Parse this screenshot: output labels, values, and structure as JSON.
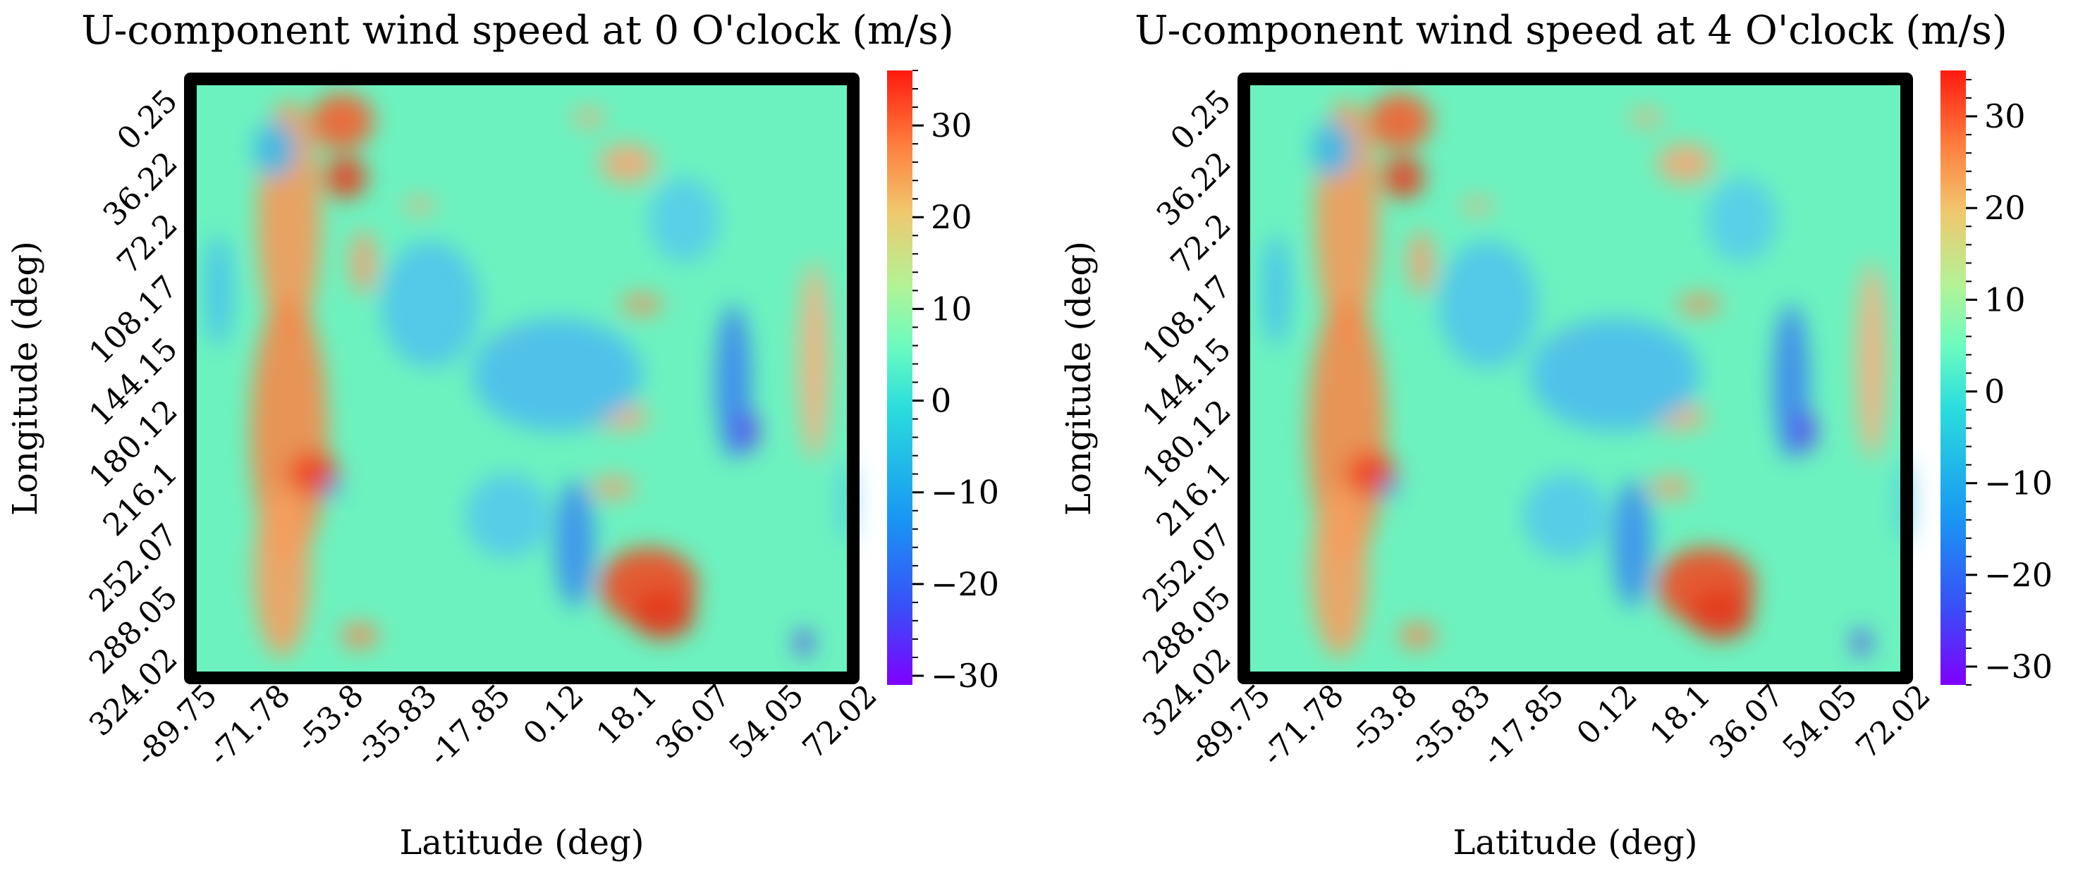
{
  "chart_data": [
    {
      "type": "heatmap",
      "title": "U-component wind speed at 0 O'clock (m/s)",
      "xlabel": "Latitude (deg)",
      "ylabel": "Longitude (deg)",
      "x_ticks": [
        "-89.75",
        "-71.78",
        "-53.8",
        "-35.83",
        "-17.85",
        "0.12",
        "18.1",
        "36.07",
        "54.05",
        "72.02"
      ],
      "y_ticks": [
        "0.25",
        "36.22",
        "72.2",
        "108.17",
        "144.15",
        "180.12",
        "216.1",
        "252.07",
        "288.05",
        "324.02"
      ],
      "colorbar": {
        "range": [
          -31,
          36
        ],
        "ticks": [
          {
            "value": 30,
            "label": "30"
          },
          {
            "value": 20,
            "label": "20"
          },
          {
            "value": 10,
            "label": "10"
          },
          {
            "value": 0,
            "label": "0"
          },
          {
            "value": -10,
            "label": "−10"
          },
          {
            "value": -20,
            "label": "−20"
          },
          {
            "value": -30,
            "label": "−30"
          }
        ],
        "colormap": "rainbow"
      }
    },
    {
      "type": "heatmap",
      "title": "U-component wind speed at 4 O'clock (m/s)",
      "xlabel": "Latitude (deg)",
      "ylabel": "Longitude (deg)",
      "x_ticks": [
        "-89.75",
        "-71.78",
        "-53.8",
        "-35.83",
        "-17.85",
        "0.12",
        "18.1",
        "36.07",
        "54.05",
        "72.02"
      ],
      "y_ticks": [
        "0.25",
        "36.22",
        "72.2",
        "108.17",
        "144.15",
        "180.12",
        "216.1",
        "252.07",
        "288.05",
        "324.02"
      ],
      "colorbar": {
        "range": [
          -32,
          35
        ],
        "ticks": [
          {
            "value": 30,
            "label": "30"
          },
          {
            "value": 20,
            "label": "20"
          },
          {
            "value": 10,
            "label": "10"
          },
          {
            "value": 0,
            "label": "0"
          },
          {
            "value": -10,
            "label": "−10"
          },
          {
            "value": -20,
            "label": "−20"
          },
          {
            "value": -30,
            "label": "−30"
          }
        ],
        "colormap": "rainbow"
      }
    }
  ]
}
